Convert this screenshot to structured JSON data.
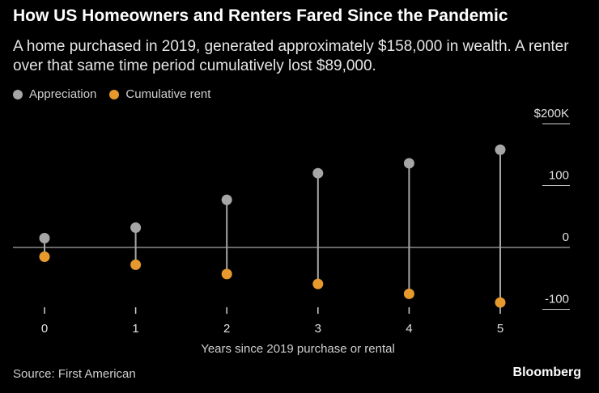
{
  "header": {
    "title": "How US Homeowners and Renters Fared Since the Pandemic",
    "subtitle": "A home purchased in 2019, generated approximately $158,000 in wealth. A renter over that same time period cumulatively lost $89,000."
  },
  "legend": [
    {
      "label": "Appreciation",
      "color": "#a6a6a6"
    },
    {
      "label": "Cumulative rent",
      "color": "#e69a2e"
    }
  ],
  "footer": {
    "source": "Source: First American",
    "brand": "Bloomberg"
  },
  "chart_data": {
    "type": "dot-range",
    "title": "How US Homeowners and Renters Fared Since the Pandemic",
    "xlabel": "Years since 2019 purchase or rental",
    "ylabel": "",
    "categories": [
      "0",
      "1",
      "2",
      "3",
      "4",
      "5"
    ],
    "series": [
      {
        "name": "Appreciation",
        "color": "#a6a6a6",
        "values": [
          15,
          32,
          77,
          120,
          136,
          158
        ]
      },
      {
        "name": "Cumulative rent",
        "color": "#e69a2e",
        "values": [
          -15,
          -28,
          -43,
          -59,
          -75,
          -89
        ]
      }
    ],
    "y_ticks": [
      {
        "value": 200,
        "label": "$200K"
      },
      {
        "value": 100,
        "label": "100"
      },
      {
        "value": 0,
        "label": "0"
      },
      {
        "value": -100,
        "label": "-100"
      }
    ],
    "ylim": [
      -100,
      200
    ],
    "zero_line": true
  }
}
